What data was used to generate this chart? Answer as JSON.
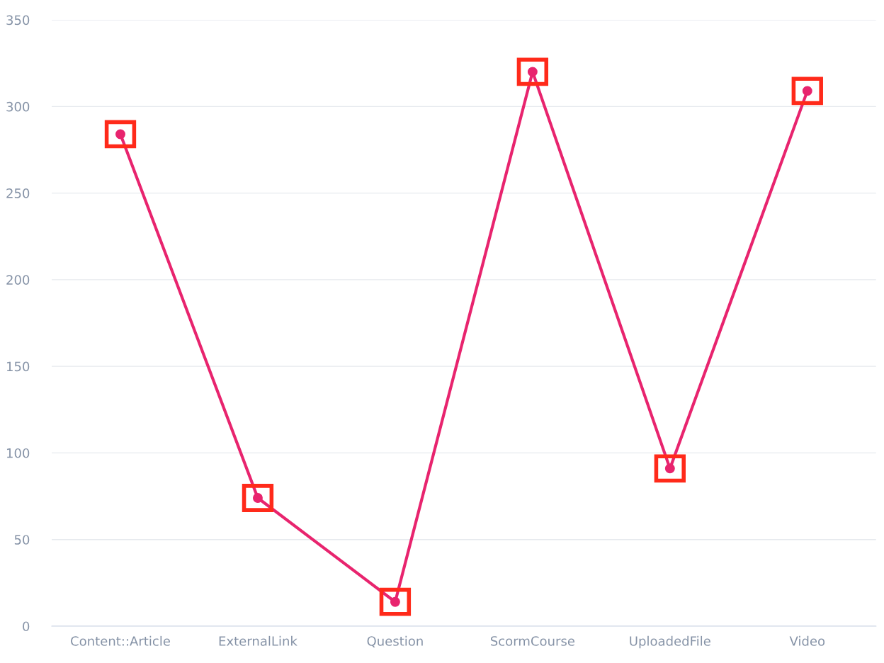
{
  "chart_data": {
    "type": "line",
    "categories": [
      "Content::Article",
      "ExternalLink",
      "Question",
      "ScormCourse",
      "UploadedFile",
      "Video"
    ],
    "series": [
      {
        "color": "#e8246e",
        "values": [
          284,
          74,
          14,
          320,
          91,
          309
        ]
      }
    ],
    "ylim": [
      0,
      350
    ],
    "yticks": [
      0,
      50,
      100,
      150,
      200,
      250,
      300,
      350
    ],
    "grid": "y",
    "marker": "circle",
    "line_style": "solid"
  }
}
